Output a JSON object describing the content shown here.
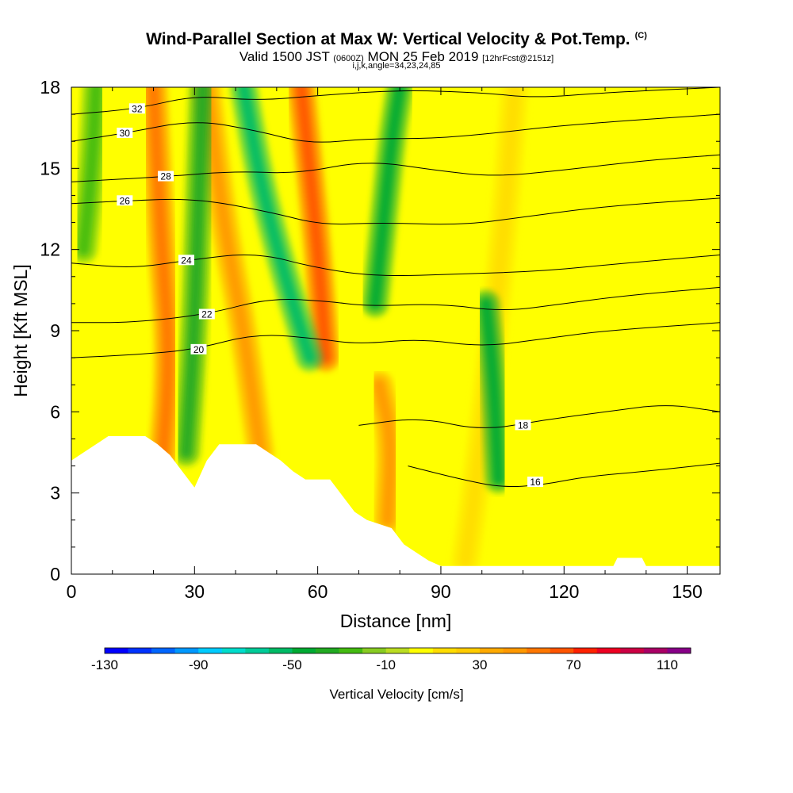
{
  "chart_data": {
    "type": "heatmap",
    "title": "Wind-Parallel Section at Max W: Vertical Velocity & Pot.Temp.",
    "title_mark": "(C)",
    "subtitle_main": "Valid 1500 JST",
    "subtitle_utc": "(0600Z)",
    "subtitle_date": "MON 25 Feb 2019",
    "subtitle_fcst": "[12hrFcst@2151z]",
    "subtitle_params": "i,j,k,angle=34,23,24,85",
    "xlabel": "Distance [nm]",
    "ylabel": "Height [Kft MSL]",
    "xlim": [
      0,
      158
    ],
    "ylim": [
      0,
      18
    ],
    "xticks": [
      0,
      30,
      60,
      90,
      120,
      150
    ],
    "yticks": [
      0,
      3,
      6,
      9,
      12,
      15,
      18
    ],
    "colorbar": {
      "label": "Vertical Velocity [cm/s]",
      "min": -130,
      "max": 120,
      "step": 10,
      "tick_labels": [
        "-130",
        "-90",
        "-50",
        "-10",
        "30",
        "70",
        "110"
      ],
      "colors": [
        "#0000ff",
        "#0033ff",
        "#0066ff",
        "#0099ff",
        "#00ccff",
        "#00ddcc",
        "#00cc99",
        "#00bb66",
        "#00aa33",
        "#22aa22",
        "#44bb11",
        "#88cc22",
        "#bbdd22",
        "#ffff00",
        "#ffdd00",
        "#ffcc00",
        "#ffaa00",
        "#ff9900",
        "#ff7700",
        "#ff5500",
        "#ff2200",
        "#ee0022",
        "#cc0044",
        "#aa0066",
        "#880088"
      ]
    },
    "terrain_top_kft": [
      {
        "x": 0,
        "h": 4.2
      },
      {
        "x": 3,
        "h": 4.5
      },
      {
        "x": 6,
        "h": 4.8
      },
      {
        "x": 9,
        "h": 5.1
      },
      {
        "x": 18,
        "h": 5.1
      },
      {
        "x": 21,
        "h": 4.8
      },
      {
        "x": 24,
        "h": 4.4
      },
      {
        "x": 27,
        "h": 3.8
      },
      {
        "x": 30,
        "h": 3.2
      },
      {
        "x": 33,
        "h": 4.2
      },
      {
        "x": 36,
        "h": 4.8
      },
      {
        "x": 45,
        "h": 4.8
      },
      {
        "x": 48,
        "h": 4.5
      },
      {
        "x": 51,
        "h": 4.2
      },
      {
        "x": 54,
        "h": 3.8
      },
      {
        "x": 57,
        "h": 3.5
      },
      {
        "x": 63,
        "h": 3.5
      },
      {
        "x": 66,
        "h": 2.9
      },
      {
        "x": 69,
        "h": 2.3
      },
      {
        "x": 72,
        "h": 2.0
      },
      {
        "x": 78,
        "h": 1.7
      },
      {
        "x": 81,
        "h": 1.1
      },
      {
        "x": 84,
        "h": 0.8
      },
      {
        "x": 87,
        "h": 0.5
      },
      {
        "x": 90,
        "h": 0.3
      },
      {
        "x": 132,
        "h": 0.3
      },
      {
        "x": 133,
        "h": 0.6
      },
      {
        "x": 139,
        "h": 0.6
      },
      {
        "x": 140,
        "h": 0.3
      },
      {
        "x": 158,
        "h": 0.3
      }
    ],
    "theta_contours": [
      {
        "label": "16",
        "label_at": [
          113,
          3.4
        ],
        "points": [
          [
            82,
            4.0
          ],
          [
            95,
            3.5
          ],
          [
            105,
            3.2
          ],
          [
            115,
            3.3
          ],
          [
            125,
            3.6
          ],
          [
            140,
            3.8
          ],
          [
            158,
            4.1
          ]
        ]
      },
      {
        "label": "18",
        "label_at": [
          110,
          5.5
        ],
        "points": [
          [
            70,
            5.5
          ],
          [
            85,
            5.8
          ],
          [
            100,
            5.3
          ],
          [
            115,
            5.7
          ],
          [
            130,
            6.0
          ],
          [
            145,
            6.3
          ],
          [
            158,
            6.0
          ]
        ]
      },
      {
        "label": "20",
        "label_at": [
          31,
          8.3
        ],
        "points": [
          [
            0,
            8.0
          ],
          [
            15,
            8.1
          ],
          [
            30,
            8.3
          ],
          [
            45,
            8.9
          ],
          [
            60,
            8.7
          ],
          [
            70,
            8.5
          ],
          [
            85,
            8.7
          ],
          [
            100,
            8.4
          ],
          [
            115,
            8.7
          ],
          [
            130,
            9.0
          ],
          [
            158,
            9.3
          ]
        ]
      },
      {
        "label": "22",
        "label_at": [
          33,
          9.6
        ],
        "points": [
          [
            0,
            9.3
          ],
          [
            15,
            9.3
          ],
          [
            33,
            9.6
          ],
          [
            48,
            10.2
          ],
          [
            62,
            10.1
          ],
          [
            72,
            9.9
          ],
          [
            90,
            10.0
          ],
          [
            105,
            9.7
          ],
          [
            120,
            10.0
          ],
          [
            135,
            10.3
          ],
          [
            158,
            10.6
          ]
        ]
      },
      {
        "label": "24",
        "label_at": [
          28,
          11.6
        ],
        "points": [
          [
            0,
            11.5
          ],
          [
            15,
            11.3
          ],
          [
            28,
            11.6
          ],
          [
            45,
            11.9
          ],
          [
            60,
            11.3
          ],
          [
            75,
            11.0
          ],
          [
            95,
            11.1
          ],
          [
            115,
            11.2
          ],
          [
            135,
            11.5
          ],
          [
            158,
            11.8
          ]
        ]
      },
      {
        "label": "26",
        "label_at": [
          13,
          13.8
        ],
        "points": [
          [
            0,
            13.7
          ],
          [
            13,
            13.8
          ],
          [
            30,
            13.9
          ],
          [
            48,
            13.4
          ],
          [
            61,
            12.9
          ],
          [
            75,
            13.0
          ],
          [
            95,
            12.9
          ],
          [
            110,
            13.2
          ],
          [
            130,
            13.6
          ],
          [
            158,
            13.9
          ]
        ]
      },
      {
        "label": "28",
        "label_at": [
          23,
          14.7
        ],
        "points": [
          [
            0,
            14.5
          ],
          [
            23,
            14.7
          ],
          [
            40,
            14.9
          ],
          [
            55,
            14.8
          ],
          [
            72,
            15.3
          ],
          [
            90,
            14.9
          ],
          [
            103,
            14.7
          ],
          [
            118,
            14.9
          ],
          [
            140,
            15.3
          ],
          [
            158,
            15.5
          ]
        ]
      },
      {
        "label": "30",
        "label_at": [
          13,
          16.3
        ],
        "points": [
          [
            0,
            16.0
          ],
          [
            13,
            16.3
          ],
          [
            30,
            16.8
          ],
          [
            45,
            16.4
          ],
          [
            58,
            15.9
          ],
          [
            72,
            16.1
          ],
          [
            88,
            16.1
          ],
          [
            103,
            16.3
          ],
          [
            120,
            16.6
          ],
          [
            158,
            17.0
          ]
        ]
      },
      {
        "label": "32",
        "label_at": [
          16,
          17.2
        ],
        "points": [
          [
            0,
            17.0
          ],
          [
            16,
            17.2
          ],
          [
            30,
            17.7
          ],
          [
            45,
            17.5
          ],
          [
            61,
            17.7
          ],
          [
            80,
            17.9
          ],
          [
            100,
            17.8
          ],
          [
            113,
            17.6
          ],
          [
            130,
            17.8
          ],
          [
            158,
            18.0
          ]
        ]
      }
    ],
    "updraft_bands": [
      {
        "vv": 55,
        "points": [
          [
            22,
            3.8
          ],
          [
            24,
            8
          ],
          [
            22,
            12
          ],
          [
            20,
            18
          ]
        ]
      },
      {
        "vv": 45,
        "points": [
          [
            46,
            4.5
          ],
          [
            42,
            9
          ],
          [
            37,
            13
          ],
          [
            33,
            18
          ]
        ]
      },
      {
        "vv": 65,
        "points": [
          [
            62,
            8
          ],
          [
            60,
            12
          ],
          [
            58,
            15
          ],
          [
            56,
            18
          ]
        ]
      },
      {
        "vv": 45,
        "points": [
          [
            77,
            2
          ],
          [
            78,
            5
          ],
          [
            75,
            7
          ]
        ]
      },
      {
        "vv": 15,
        "points": [
          [
            96,
            0.5
          ],
          [
            100,
            5
          ],
          [
            105,
            12
          ],
          [
            108,
            18
          ]
        ]
      }
    ],
    "downdraft_bands": [
      {
        "vv": -40,
        "points": [
          [
            28,
            4.5
          ],
          [
            30,
            9
          ],
          [
            31,
            14
          ],
          [
            32,
            18
          ]
        ]
      },
      {
        "vv": -55,
        "points": [
          [
            58,
            8
          ],
          [
            52,
            11
          ],
          [
            46,
            14.5
          ],
          [
            42,
            18
          ]
        ]
      },
      {
        "vv": -50,
        "points": [
          [
            74,
            10
          ],
          [
            76,
            13
          ],
          [
            78,
            16
          ],
          [
            80,
            18
          ]
        ]
      },
      {
        "vv": -45,
        "points": [
          [
            104,
            3.5
          ],
          [
            103,
            7
          ],
          [
            101,
            10
          ]
        ]
      },
      {
        "vv": -30,
        "points": [
          [
            3,
            12
          ],
          [
            5,
            15
          ],
          [
            6,
            18
          ]
        ]
      }
    ]
  }
}
